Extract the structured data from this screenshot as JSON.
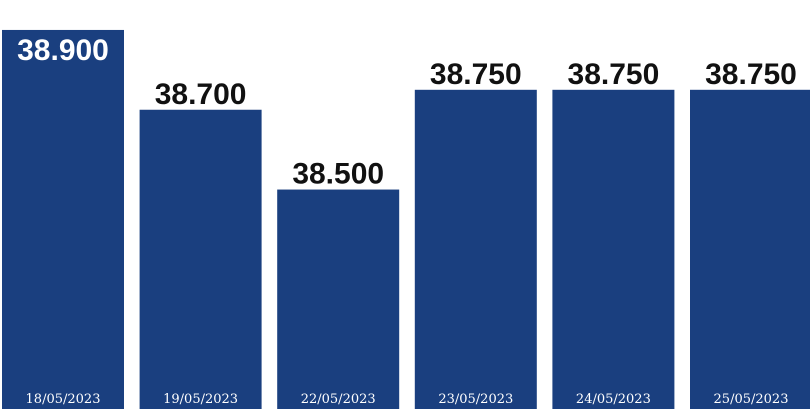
{
  "chart_data": {
    "type": "bar",
    "categories": [
      "18/05/2023",
      "19/05/2023",
      "22/05/2023",
      "23/05/2023",
      "24/05/2023",
      "25/05/2023"
    ],
    "values": [
      38900,
      38700,
      38500,
      38750,
      38750,
      38750
    ],
    "value_labels": [
      "38.900",
      "38.700",
      "38.500",
      "38.750",
      "38.750",
      "38.750"
    ],
    "bar_color": "#1a3f7f",
    "label_color": "#111111",
    "title": "",
    "xlabel": "",
    "ylabel": "",
    "ylim": [
      37950,
      38950
    ],
    "grid": false,
    "legend": "none"
  }
}
